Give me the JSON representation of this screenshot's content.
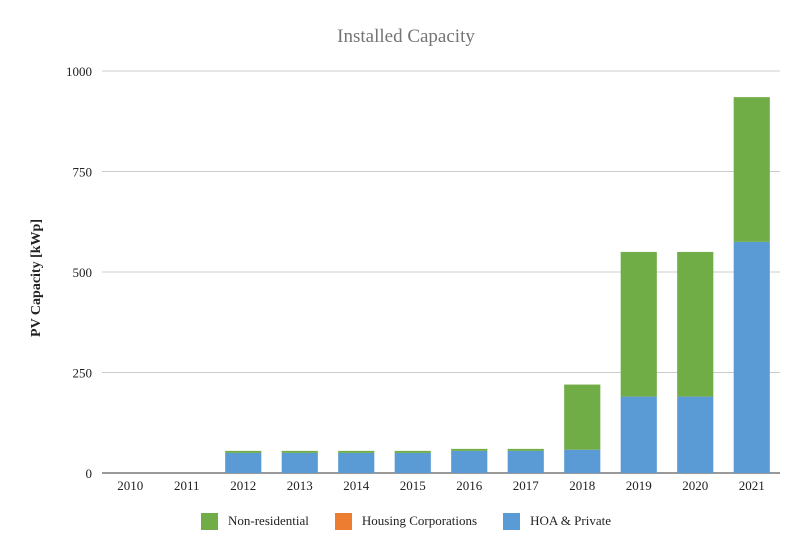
{
  "chart_data": {
    "type": "bar",
    "stacked": true,
    "title": "Installed Capacity",
    "xlabel": "",
    "ylabel": "PV Capacity [kWp]",
    "categories": [
      "2010",
      "2011",
      "2012",
      "2013",
      "2014",
      "2015",
      "2016",
      "2017",
      "2018",
      "2019",
      "2020",
      "2021"
    ],
    "ylim": [
      0,
      1000
    ],
    "yticks": [
      "0",
      "250",
      "500",
      "750",
      "1000"
    ],
    "grid": true,
    "legend_position": "bottom",
    "series": [
      {
        "name": "HOA & Private",
        "color": "#5b9bd5",
        "values": [
          0,
          0,
          50,
          50,
          50,
          50,
          55,
          55,
          58,
          190,
          190,
          575
        ]
      },
      {
        "name": "Housing Corporations",
        "color": "#ed7d31",
        "values": [
          0,
          0,
          0,
          0,
          0,
          0,
          0,
          0,
          0,
          0,
          0,
          0
        ]
      },
      {
        "name": "Non-residential",
        "color": "#70ad47",
        "values": [
          0,
          0,
          5,
          5,
          5,
          5,
          5,
          5,
          162,
          360,
          360,
          360
        ]
      }
    ],
    "legend_order": [
      2,
      1,
      0
    ]
  }
}
